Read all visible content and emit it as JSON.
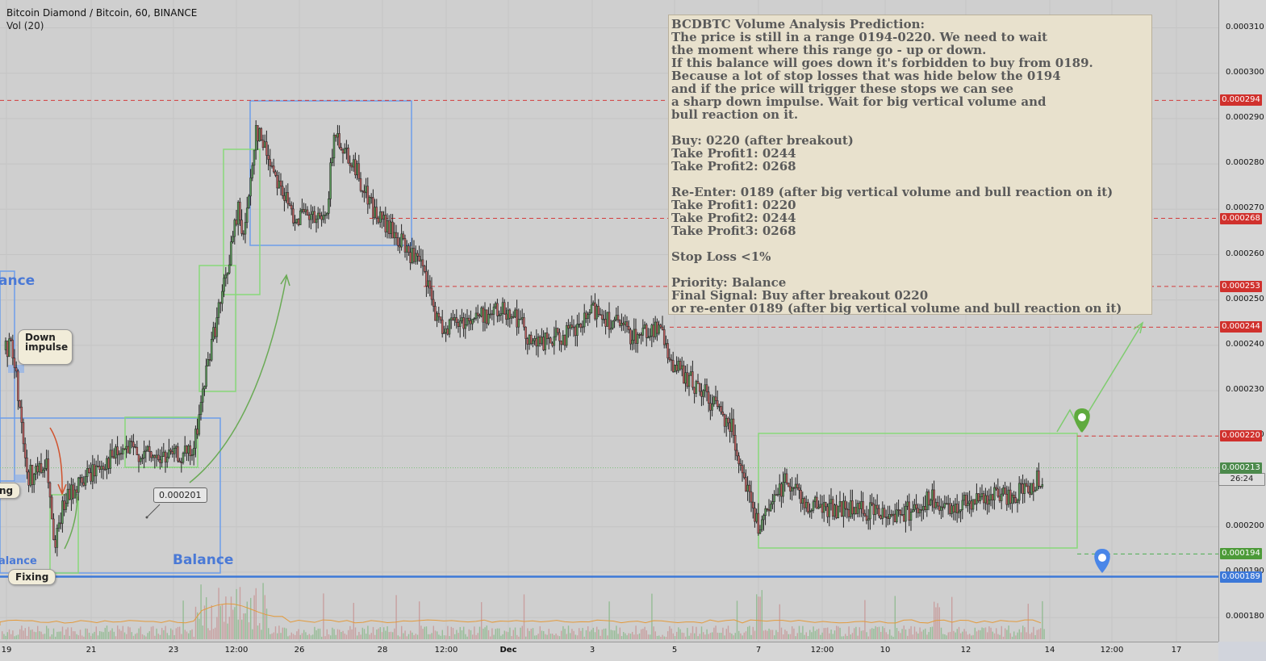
{
  "header": {
    "title": "Bitcoin Diamond / Bitcoin, 60, BINANCE",
    "volume_label": "Vol (20)"
  },
  "colors": {
    "up": "#5a9a5a",
    "down": "#c06060",
    "balance_box": "#6d9eea",
    "green_box": "#89d87a",
    "red_dash": "#d43c3c",
    "green_dash": "#4caf50",
    "note_bg": "#e8e1cd"
  },
  "price_axis": {
    "ticks": [
      "0.000310",
      "0.000300",
      "0.000290",
      "0.000280",
      "0.000270",
      "0.000260",
      "0.000250",
      "0.000240",
      "0.000230",
      "0.000220",
      "0.000210",
      "0.000200",
      "0.000190",
      "0.000180"
    ]
  },
  "price_tags": [
    {
      "value": "0.000294",
      "color": "#d0312d"
    },
    {
      "value": "0.000268",
      "color": "#d0312d"
    },
    {
      "value": "0.000253",
      "color": "#d0312d"
    },
    {
      "value": "0.000244",
      "color": "#d0312d"
    },
    {
      "value": "0.000220",
      "color": "#d0312d"
    },
    {
      "value": "0.000213",
      "color": "#4c8a4c"
    },
    {
      "value": "0.000194",
      "color": "#4c9a38"
    },
    {
      "value": "0.000189",
      "color": "#3c78d8"
    }
  ],
  "countdown": "26:24",
  "time_axis": [
    "19",
    "21",
    "23",
    "12:00",
    "26",
    "28",
    "12:00",
    "Dec",
    "3",
    "5",
    "7",
    "12:00",
    "10",
    "12",
    "14",
    "12:00",
    "17"
  ],
  "annotations": {
    "down_impulse": "Down\nimpulse",
    "fixing": "Fixing",
    "ng": "ng",
    "balance_big": "Balance",
    "balance_small": "alance",
    "balance_left": "ance",
    "callout_price": "0.000201"
  },
  "note_lines": [
    "BCDBTC Volume Analysis Prediction:",
    "The price is still in a range 0194-0220. We need to wait",
    "the moment where this range go - up or down.",
    "If this balance will goes down it's forbidden to buy from 0189.",
    "Because a lot of stop losses that was hide below the 0194",
    "and if the price will trigger these stops we can see",
    "a sharp down impulse. Wait for big vertical volume and",
    "bull reaction on it.",
    "",
    "Buy: 0220 (after breakout)",
    "Take Profit1: 0244",
    "Take Profit2: 0268",
    "",
    "Re-Enter: 0189 (after big vertical volume and bull reaction on it)",
    "Take Profit1: 0220",
    "Take Profit2: 0244",
    "Take Profit3: 0268",
    "",
    "Stop Loss <1%",
    "",
    "Priority: Balance",
    "Final Signal: Buy after breakout 0220",
    "or re-enter 0189 (after big vertical volume and bull reaction on it)"
  ],
  "chart_data": {
    "type": "candlestick",
    "symbol": "BCDBTC",
    "ylim": [
      0.000175,
      0.000315
    ],
    "levels": {
      "resistance": [
        0.000294,
        0.000268,
        0.000253,
        0.000244,
        0.00022
      ],
      "range_low": 0.000194,
      "balance_low": 0.000189,
      "last_price": 0.000213
    },
    "price_path": [
      {
        "t": 0,
        "p": 0.000239
      },
      {
        "t": 0.4,
        "p": 0.00024
      },
      {
        "t": 1.0,
        "p": 0.000223
      },
      {
        "t": 1.3,
        "p": 0.000211
      },
      {
        "t": 2.6,
        "p": 0.000213
      },
      {
        "t": 3.0,
        "p": 0.000194
      },
      {
        "t": 3.6,
        "p": 0.000205
      },
      {
        "t": 4.4,
        "p": 0.000209
      },
      {
        "t": 6.0,
        "p": 0.000214
      },
      {
        "t": 7.6,
        "p": 0.000217
      },
      {
        "t": 9.4,
        "p": 0.000215
      },
      {
        "t": 11.6,
        "p": 0.000216
      },
      {
        "t": 12.6,
        "p": 0.000238
      },
      {
        "t": 13.6,
        "p": 0.000254
      },
      {
        "t": 14.4,
        "p": 0.00027
      },
      {
        "t": 14.8,
        "p": 0.000264
      },
      {
        "t": 15.5,
        "p": 0.000288
      },
      {
        "t": 16.6,
        "p": 0.000279
      },
      {
        "t": 17.7,
        "p": 0.000269
      },
      {
        "t": 19.8,
        "p": 0.000267
      },
      {
        "t": 20.4,
        "p": 0.000287
      },
      {
        "t": 21.4,
        "p": 0.000281
      },
      {
        "t": 22.9,
        "p": 0.000269
      },
      {
        "t": 24.4,
        "p": 0.000263
      },
      {
        "t": 25.8,
        "p": 0.000257
      },
      {
        "t": 26.9,
        "p": 0.000244
      },
      {
        "t": 30.0,
        "p": 0.000247
      },
      {
        "t": 31.3,
        "p": 0.000248
      },
      {
        "t": 32.8,
        "p": 0.00024
      },
      {
        "t": 35.4,
        "p": 0.000243
      },
      {
        "t": 36.5,
        "p": 0.000248
      },
      {
        "t": 38.9,
        "p": 0.000242
      },
      {
        "t": 40.4,
        "p": 0.000244
      },
      {
        "t": 41.5,
        "p": 0.000235
      },
      {
        "t": 43.4,
        "p": 0.000229
      },
      {
        "t": 44.9,
        "p": 0.000223
      },
      {
        "t": 46.6,
        "p": 0.0002
      },
      {
        "t": 47.1,
        "p": 0.000202
      },
      {
        "t": 48.4,
        "p": 0.000211
      },
      {
        "t": 49.6,
        "p": 0.000205
      },
      {
        "t": 51.6,
        "p": 0.000204
      },
      {
        "t": 55.6,
        "p": 0.000203
      },
      {
        "t": 57.4,
        "p": 0.000206
      },
      {
        "t": 58.2,
        "p": 0.000203
      },
      {
        "t": 59.6,
        "p": 0.000206
      },
      {
        "t": 62.6,
        "p": 0.000207
      },
      {
        "t": 64.6,
        "p": 0.000212
      }
    ]
  }
}
